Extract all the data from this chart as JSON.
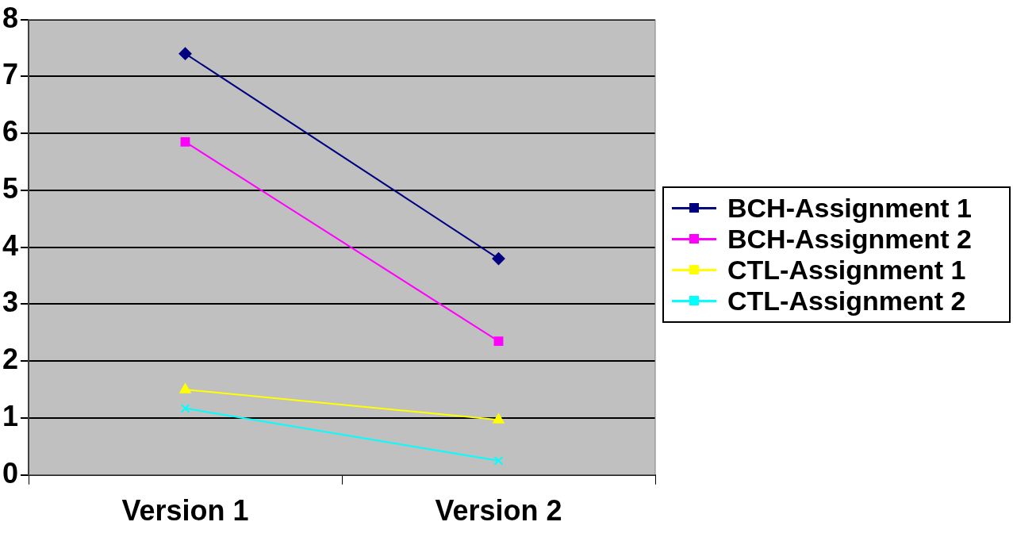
{
  "chart_data": {
    "type": "line",
    "categories": [
      "Version 1",
      "Version 2"
    ],
    "series": [
      {
        "name": "BCH-Assignment 1",
        "color": "#000080",
        "marker": "diamond",
        "values": [
          7.4,
          3.8
        ]
      },
      {
        "name": "BCH-Assignment 2",
        "color": "#ff00ff",
        "marker": "square",
        "values": [
          5.85,
          2.35
        ]
      },
      {
        "name": "CTL-Assignment 1",
        "color": "#ffff00",
        "marker": "triangle",
        "values": [
          1.5,
          0.97
        ]
      },
      {
        "name": "CTL-Assignment 2",
        "color": "#00ffff",
        "marker": "cross",
        "values": [
          1.17,
          0.25
        ]
      }
    ],
    "ylim": [
      0,
      8
    ],
    "yticks": [
      0,
      1,
      2,
      3,
      4,
      5,
      6,
      7,
      8
    ],
    "grid": "y",
    "legend": "right",
    "line_style": "solid"
  }
}
